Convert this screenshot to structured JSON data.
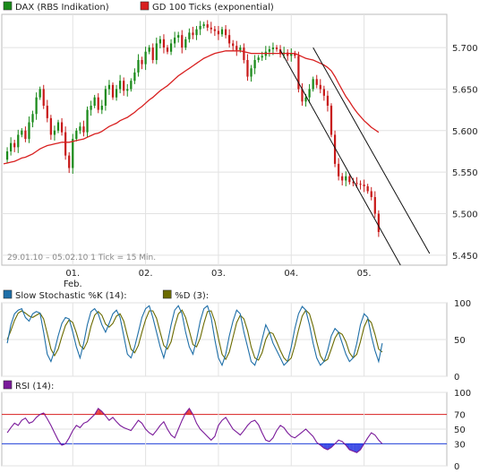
{
  "chart_data": [
    {
      "type": "candlestick",
      "name_key": "price",
      "legend": [
        {
          "label": "DAX (RBS Indikation)",
          "color": "#1a8a1a"
        },
        {
          "label": "GD 100 Ticks (exponential)",
          "color": "#d81f1f"
        }
      ],
      "period_label": "29.01.10 – 05.02.10   1 Tick = 15 Min.",
      "x_ticks": [
        {
          "label": "01.",
          "sub": "Feb.",
          "t": 19
        },
        {
          "label": "02.",
          "sub": "",
          "t": 39
        },
        {
          "label": "03.",
          "sub": "",
          "t": 59
        },
        {
          "label": "04.",
          "sub": "",
          "t": 79
        },
        {
          "label": "05.",
          "sub": "",
          "t": 99
        }
      ],
      "y_ticks": [
        "5.700",
        "5.650",
        "5.600",
        "5.550",
        "5.500",
        "5.450"
      ],
      "y_values": [
        5700,
        5650,
        5600,
        5550,
        5500,
        5450
      ],
      "ylim": [
        5438,
        5740
      ],
      "xlim": [
        0,
        120
      ],
      "close_series": [
        5565,
        5575,
        5585,
        5580,
        5595,
        5600,
        5590,
        5610,
        5620,
        5640,
        5650,
        5630,
        5615,
        5595,
        5600,
        5610,
        5598,
        5570,
        5555,
        5590,
        5600,
        5605,
        5598,
        5625,
        5630,
        5640,
        5625,
        5630,
        5650,
        5655,
        5640,
        5650,
        5660,
        5648,
        5650,
        5660,
        5670,
        5685,
        5680,
        5695,
        5700,
        5685,
        5705,
        5710,
        5700,
        5695,
        5705,
        5712,
        5715,
        5700,
        5710,
        5718,
        5715,
        5722,
        5726,
        5728,
        5724,
        5722,
        5720,
        5716,
        5722,
        5715,
        5705,
        5702,
        5697,
        5700,
        5685,
        5665,
        5675,
        5685,
        5688,
        5690,
        5695,
        5698,
        5700,
        5698,
        5692,
        5694,
        5690,
        5693,
        5690,
        5650,
        5635,
        5640,
        5650,
        5662,
        5655,
        5650,
        5642,
        5630,
        5595,
        5560,
        5545,
        5540,
        5545,
        5538,
        5537,
        5536,
        5535,
        5533,
        5527,
        5520,
        5500,
        5478
      ],
      "ma_series": [
        5560,
        5561,
        5562,
        5563,
        5565,
        5567,
        5568,
        5570,
        5572,
        5575,
        5578,
        5580,
        5582,
        5583,
        5584,
        5585,
        5586,
        5586,
        5586,
        5587,
        5588,
        5589,
        5590,
        5592,
        5594,
        5596,
        5597,
        5599,
        5602,
        5605,
        5607,
        5609,
        5612,
        5614,
        5616,
        5619,
        5622,
        5626,
        5629,
        5633,
        5637,
        5640,
        5644,
        5648,
        5651,
        5654,
        5658,
        5662,
        5666,
        5669,
        5672,
        5675,
        5678,
        5681,
        5684,
        5687,
        5689,
        5691,
        5693,
        5694,
        5695,
        5696,
        5696,
        5696,
        5696,
        5696,
        5695,
        5694,
        5693,
        5693,
        5693,
        5693,
        5693,
        5693,
        5693,
        5693,
        5693,
        5693,
        5693,
        5693,
        5693,
        5691,
        5689,
        5687,
        5686,
        5685,
        5683,
        5681,
        5679,
        5676,
        5672,
        5665,
        5657,
        5649,
        5641,
        5635,
        5628,
        5622,
        5617,
        5612,
        5608,
        5604,
        5601,
        5598
      ],
      "channel_lines": [
        {
          "x1": 76,
          "y1": 5697,
          "x2": 109,
          "y2": 5438
        },
        {
          "x1": 85,
          "y1": 5700,
          "x2": 117,
          "y2": 5452
        }
      ]
    },
    {
      "type": "line",
      "name_key": "stoch",
      "legend": [
        {
          "label": "Slow Stochastic %K (14):",
          "color": "#1f6fa8"
        },
        {
          "label": "%D (3):",
          "color": "#6b6b00"
        }
      ],
      "y_ticks": [
        "100",
        "50",
        "0"
      ],
      "y_values": [
        100,
        50,
        0
      ],
      "ylim": [
        0,
        100
      ],
      "xlim": [
        0,
        120
      ],
      "k_series": [
        45,
        70,
        85,
        90,
        92,
        80,
        75,
        85,
        88,
        86,
        60,
        30,
        20,
        35,
        55,
        72,
        80,
        78,
        60,
        40,
        25,
        45,
        70,
        88,
        92,
        85,
        70,
        60,
        72,
        85,
        90,
        80,
        55,
        30,
        25,
        40,
        60,
        80,
        92,
        96,
        80,
        60,
        40,
        25,
        45,
        70,
        90,
        96,
        85,
        60,
        40,
        30,
        50,
        75,
        92,
        96,
        80,
        50,
        25,
        15,
        30,
        55,
        75,
        90,
        85,
        60,
        40,
        20,
        15,
        30,
        50,
        70,
        60,
        45,
        35,
        25,
        15,
        20,
        40,
        65,
        85,
        95,
        90,
        70,
        45,
        25,
        15,
        20,
        35,
        55,
        65,
        60,
        45,
        30,
        20,
        25,
        45,
        70,
        85,
        80,
        55,
        35,
        20,
        45
      ],
      "d_series": [
        50,
        62,
        76,
        86,
        89,
        86,
        82,
        80,
        83,
        86,
        78,
        58,
        37,
        28,
        37,
        54,
        69,
        77,
        73,
        59,
        42,
        37,
        47,
        68,
        83,
        88,
        83,
        71,
        67,
        72,
        82,
        85,
        75,
        55,
        37,
        32,
        42,
        60,
        77,
        89,
        89,
        79,
        60,
        42,
        37,
        47,
        68,
        85,
        90,
        80,
        62,
        43,
        40,
        52,
        72,
        88,
        89,
        75,
        52,
        30,
        23,
        33,
        53,
        73,
        83,
        78,
        62,
        40,
        25,
        22,
        32,
        50,
        60,
        58,
        47,
        35,
        25,
        20,
        25,
        42,
        63,
        82,
        90,
        85,
        68,
        47,
        28,
        20,
        23,
        37,
        52,
        60,
        57,
        47,
        32,
        25,
        30,
        47,
        67,
        78,
        73,
        57,
        37,
        33
      ]
    },
    {
      "type": "line",
      "name_key": "rsi",
      "legend": [
        {
          "label": "RSI (14):",
          "color": "#7a1a9a"
        }
      ],
      "y_ticks": [
        "100",
        "70",
        "50",
        "30",
        "0"
      ],
      "y_values": [
        100,
        70,
        50,
        30,
        0
      ],
      "ylim": [
        0,
        100
      ],
      "xlim": [
        0,
        120
      ],
      "ref_lines": [
        {
          "value": 70,
          "color": "#d81f1f",
          "label": "70"
        },
        {
          "value": 30,
          "color": "#1f3fd8",
          "label": "30"
        }
      ],
      "rsi_series": [
        45,
        52,
        58,
        55,
        62,
        65,
        58,
        60,
        66,
        70,
        72,
        64,
        55,
        45,
        35,
        28,
        30,
        38,
        48,
        55,
        52,
        58,
        60,
        65,
        70,
        78,
        74,
        68,
        62,
        66,
        60,
        55,
        52,
        50,
        48,
        55,
        62,
        58,
        50,
        45,
        42,
        48,
        55,
        60,
        50,
        42,
        38,
        50,
        62,
        72,
        78,
        70,
        58,
        50,
        45,
        40,
        35,
        40,
        55,
        62,
        66,
        58,
        50,
        46,
        42,
        48,
        55,
        60,
        62,
        56,
        45,
        35,
        33,
        38,
        48,
        55,
        52,
        45,
        40,
        38,
        42,
        46,
        50,
        45,
        40,
        32,
        28,
        24,
        22,
        25,
        30,
        35,
        33,
        28,
        22,
        20,
        18,
        22,
        30,
        38,
        45,
        42,
        35,
        30
      ]
    }
  ]
}
